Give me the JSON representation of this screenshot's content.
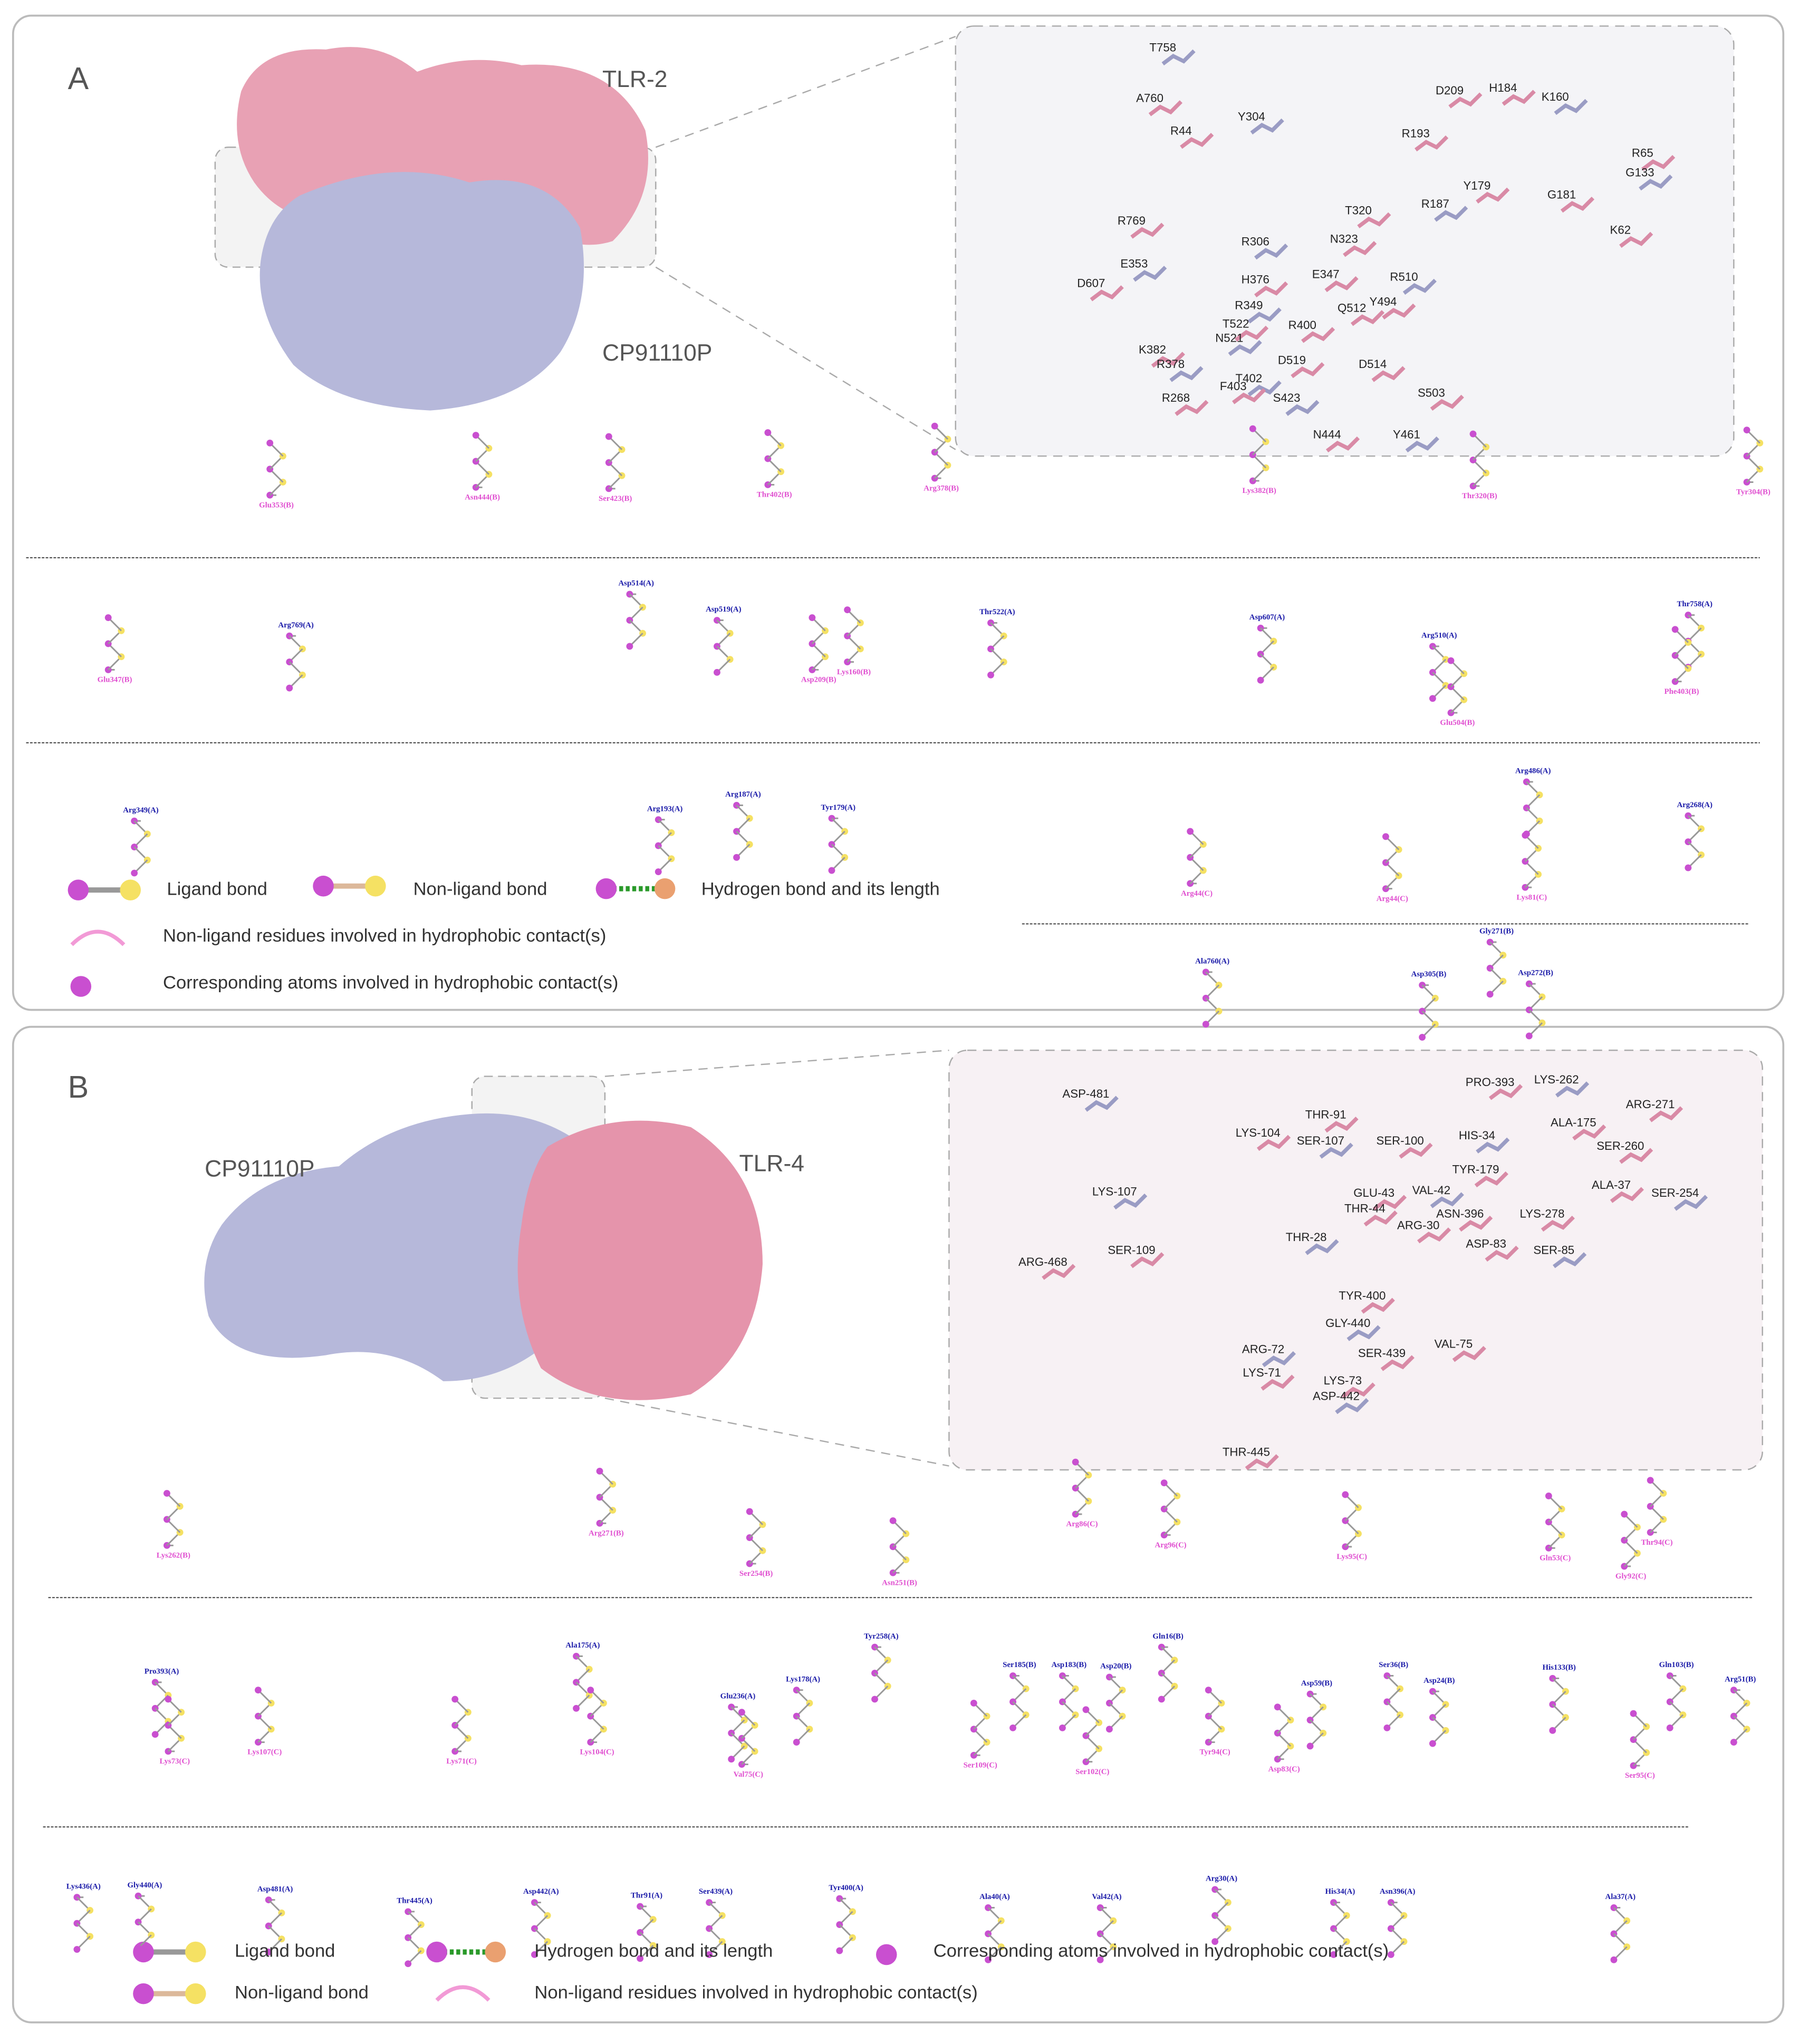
{
  "panel_a": {
    "label": "A",
    "receptor": "TLR-2",
    "ligand": "CP91110P",
    "interface_residues": [
      "T758",
      "A760",
      "R44",
      "Y304",
      "D209",
      "H184",
      "K160",
      "R193",
      "Y179",
      "R187",
      "G181",
      "R65",
      "G133",
      "K62",
      "R769",
      "E353",
      "T320",
      "N323",
      "R306",
      "H376",
      "E347",
      "R510",
      "Q512",
      "Y494",
      "R349",
      "D607",
      "T522",
      "N521",
      "R400",
      "K382",
      "R378",
      "D519",
      "D514",
      "T402",
      "F403",
      "R268",
      "S423",
      "S503",
      "N444",
      "Y461"
    ],
    "ligplot_residues": [
      "Glu353(B)",
      "Asn444(B)",
      "Ser423(B)",
      "Thr402(B)",
      "Arg378(B)",
      "Lys382(B)",
      "Thr320(B)",
      "Tyr304(B)",
      "Arg769(A)",
      "Asp514(A)",
      "Asp519(A)",
      "Thr522(A)",
      "Asp607(A)",
      "Arg510(A)",
      "Thr758(A)",
      "Glu347(B)",
      "Asp209(B)",
      "Lys160(B)",
      "Glu504(B)",
      "Phe403(B)",
      "Arg349(A)",
      "Arg193(A)",
      "Arg187(A)",
      "Tyr179(A)",
      "Arg486(A)",
      "Arg268(A)",
      "Arg44(C)",
      "Arg44(C)",
      "Lys81(C)",
      "Ala760(A)",
      "Asp305(B)",
      "Gly271(B)",
      "Asp272(B)"
    ],
    "legend": [
      "Ligand bond",
      "Non-ligand bond",
      "Hydrogen bond and its length",
      "Non-ligand residues involved in hydrophobic contact(s)",
      "Corresponding atoms involved in hydrophobic contact(s)"
    ]
  },
  "panel_b": {
    "label": "B",
    "receptor": "TLR-4",
    "ligand": "CP91110P",
    "interface_residues": [
      "ASP-481",
      "THR-91",
      "LYS-104",
      "SER-107",
      "SER-100",
      "PRO-393",
      "LYS-262",
      "ARG-271",
      "ALA-175",
      "HIS-34",
      "SER-260",
      "TYR-179",
      "VAL-42",
      "GLU-43",
      "ALA-37",
      "SER-254",
      "THR-44",
      "ASN-396",
      "LYS-107",
      "LYS-278",
      "ARG-30",
      "THR-28",
      "ASP-83",
      "SER-109",
      "SER-85",
      "ARG-468",
      "TYR-400",
      "GLY-440",
      "VAL-75",
      "SER-439",
      "ARG-72",
      "LYS-71",
      "LYS-73",
      "ASP-442",
      "THR-445"
    ],
    "ligplot_residues": [
      "Lys262(B)",
      "Arg271(B)",
      "Ser254(B)",
      "Asn251(B)",
      "Arg86(C)",
      "Arg96(C)",
      "Lys95(C)",
      "Gln53(C)",
      "Thr94(C)",
      "Gly92(C)",
      "Pro393(A)",
      "Ala175(A)",
      "Tyr258(A)",
      "Glu236(A)",
      "Lys178(A)",
      "Ser185(B)",
      "Asp183(B)",
      "Asp20(B)",
      "Gln16(B)",
      "Ser36(B)",
      "Asp59(B)",
      "Asp24(B)",
      "His133(B)",
      "Gln103(B)",
      "Arg51(B)",
      "Lys73(C)",
      "Lys107(C)",
      "Lys71(C)",
      "Lys104(C)",
      "Val75(C)",
      "Ser109(C)",
      "Ser102(C)",
      "Tyr94(C)",
      "Asp83(C)",
      "Ser95(C)",
      "Lys436(A)",
      "Gly440(A)",
      "Asp481(A)",
      "Thr445(A)",
      "Asp442(A)",
      "Thr91(A)",
      "Ser439(A)",
      "Tyr400(A)",
      "Ala40(A)",
      "Val42(A)",
      "Arg30(A)",
      "His34(A)",
      "Asn396(A)",
      "Ala37(A)"
    ],
    "legend": [
      "Ligand bond",
      "Hydrogen bond and its length",
      "Corresponding atoms involved in hydrophobic contact(s)",
      "Non-ligand bond",
      "Non-ligand residues involved in hydrophobic contact(s)"
    ]
  }
}
